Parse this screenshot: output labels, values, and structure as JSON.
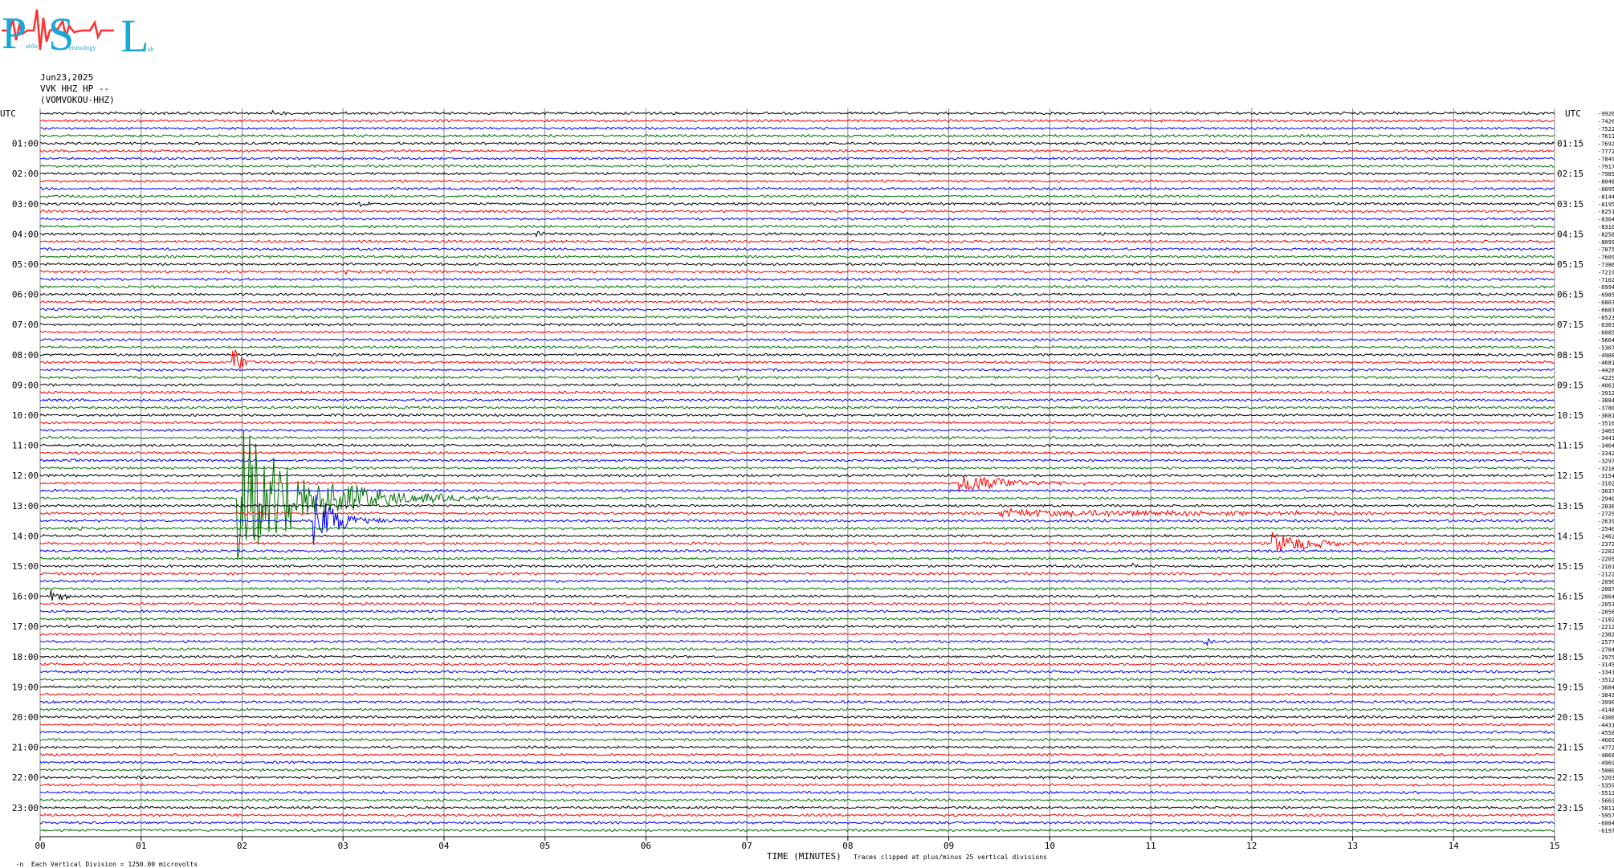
{
  "logo": {
    "letters": [
      "P",
      "S",
      "L"
    ],
    "small_words": [
      "ublic",
      "eismology",
      "ab"
    ]
  },
  "header": {
    "date": "Jun23,2025",
    "station": "VVK HHZ HP --",
    "source": "(VOMVOKOU-HHZ)"
  },
  "chart_data": {
    "type": "line",
    "title": "Jun23,2025",
    "xlabel": "TIME (MINUTES)",
    "xlim": [
      0,
      15
    ],
    "x_ticks": [
      "00",
      "01",
      "02",
      "03",
      "04",
      "05",
      "06",
      "07",
      "08",
      "09",
      "10",
      "11",
      "12",
      "13",
      "14",
      "15"
    ],
    "left_axis_title": "UTC",
    "right_axis_title": "UTC",
    "left_hour_labels": [
      "01:00",
      "02:00",
      "03:00",
      "04:00",
      "05:00",
      "06:00",
      "07:00",
      "08:00",
      "09:00",
      "10:00",
      "11:00",
      "12:00",
      "13:00",
      "14:00",
      "15:00",
      "16:00",
      "17:00",
      "18:00",
      "19:00",
      "20:00",
      "21:00",
      "22:00",
      "23:00"
    ],
    "right_hour_labels": [
      "01:15",
      "02:15",
      "03:15",
      "04:15",
      "05:15",
      "06:15",
      "07:15",
      "08:15",
      "09:15",
      "10:15",
      "11:15",
      "12:15",
      "13:15",
      "14:15",
      "15:15",
      "16:15",
      "17:15",
      "18:15",
      "19:15",
      "20:15",
      "21:15",
      "22:15",
      "23:15"
    ],
    "trace_colors": [
      "#000000",
      "#ff0000",
      "#0000ff",
      "#007000"
    ],
    "traces_per_hour": 4,
    "trace_count": 96,
    "offsets": [
      "-9926",
      "-7426",
      "-7522",
      "-7611",
      "-7692",
      "-7772",
      "-7849",
      "-7917",
      "-7985",
      "-8048",
      "-8095",
      "-8144",
      "-8195",
      "-8251",
      "-8304",
      "-8310",
      "-8258",
      "-8099",
      "-7875",
      "-7609",
      "-7386",
      "-7219",
      "-7102",
      "-6994",
      "-6985",
      "-6803",
      "-6683",
      "-6523",
      "-6303",
      "-6085",
      "-5664",
      "-5307",
      "-4988",
      "-4681",
      "-4428",
      "-4229",
      "-4061",
      "-3912",
      "-3884",
      "-3780",
      "-3681",
      "-3516",
      "-3469",
      "-3441",
      "-3404",
      "-3342",
      "-3297",
      "-3218",
      "-3154",
      "-3102",
      "-3037",
      "-2940",
      "-2838",
      "-2729",
      "-2639",
      "-2540",
      "-2462",
      "-2372",
      "-2282",
      "-2205",
      "-2161",
      "-2122",
      "-2096",
      "-2087",
      "-2064",
      "-2053",
      "-2056",
      "-2102",
      "-2212",
      "-2382",
      "-2577",
      "-2784",
      "-2975",
      "-3149",
      "-3341",
      "-3512",
      "-3684",
      "-3843",
      "-3990",
      "-4148",
      "-4306",
      "-4431",
      "-4558",
      "-4669",
      "-4772",
      "-4868",
      "-4969",
      "-5080",
      "-5203",
      "-5359",
      "-5513",
      "-5663",
      "-5811",
      "-5957",
      "-6084",
      "-6197"
    ],
    "events": [
      {
        "trace": 0,
        "minute": 2.3,
        "amp": 0.25,
        "dur": 0.2
      },
      {
        "trace": 12,
        "minute": 3.15,
        "amp": 0.6,
        "dur": 0.08
      },
      {
        "trace": 16,
        "minute": 4.9,
        "amp": 0.35,
        "dur": 0.12
      },
      {
        "trace": 18,
        "minute": 12.95,
        "amp": 0.25,
        "dur": 0.1
      },
      {
        "trace": 21,
        "minute": 3.0,
        "amp": 0.2,
        "dur": 0.4
      },
      {
        "trace": 33,
        "minute": 1.9,
        "amp": 3.0,
        "dur": 0.1
      },
      {
        "trace": 35,
        "minute": 6.9,
        "amp": 0.3,
        "dur": 0.1
      },
      {
        "trace": 35,
        "minute": 11.05,
        "amp": 0.35,
        "dur": 0.1
      },
      {
        "trace": 46,
        "minute": 0.25,
        "amp": 0.3,
        "dur": 0.1
      },
      {
        "trace": 49,
        "minute": 9.1,
        "amp": 1.4,
        "dur": 0.6
      },
      {
        "trace": 51,
        "minute": 1.95,
        "amp": 10.0,
        "dur": 0.8
      },
      {
        "trace": 53,
        "minute": 9.5,
        "amp": 0.5,
        "dur": 3.5
      },
      {
        "trace": 54,
        "minute": 2.7,
        "amp": 4.0,
        "dur": 0.3
      },
      {
        "trace": 55,
        "minute": 0.3,
        "amp": 0.2,
        "dur": 0.9
      },
      {
        "trace": 57,
        "minute": 12.2,
        "amp": 1.6,
        "dur": 0.5
      },
      {
        "trace": 60,
        "minute": 10.8,
        "amp": 0.5,
        "dur": 0.05
      },
      {
        "trace": 64,
        "minute": 0.1,
        "amp": 1.0,
        "dur": 0.15
      },
      {
        "trace": 66,
        "minute": 13.45,
        "amp": 0.3,
        "dur": 0.1
      },
      {
        "trace": 70,
        "minute": 11.5,
        "amp": 0.8,
        "dur": 0.15
      }
    ]
  },
  "footer": {
    "scale_note": "Each Vertical Division = 1250.00 microvolts",
    "time_label": "TIME (MINUTES)",
    "clip_note": "Traces clipped at plus/minus 25 vertical divisions",
    "corner_mark": "-n"
  }
}
